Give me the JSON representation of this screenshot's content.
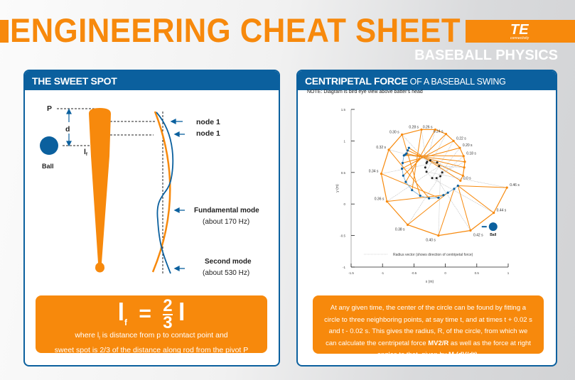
{
  "header": {
    "title": "ENGINEERING CHEAT SHEET",
    "subtitle": "BASEBALL PHYSICS",
    "logo_text": "TE",
    "logo_sub": "connectivity",
    "accent": "#f7890c",
    "brand_blue": "#0b609e"
  },
  "sweet_spot": {
    "heading": "THE SWEET SPOT",
    "labels": {
      "pivot": "P",
      "distance": "d",
      "contact": "l",
      "contact_sub": "f",
      "ball": "Ball"
    },
    "modes": [
      {
        "label": "node 1"
      },
      {
        "label": "node 1"
      },
      {
        "label": "Fundamental mode",
        "detail": "(about 170 Hz)"
      },
      {
        "label": "Second mode",
        "detail": "(about 530 Hz)"
      }
    ],
    "formula": {
      "lhs": "l",
      "lhs_sub": "f",
      "eq": "=",
      "num": "2",
      "den": "3",
      "rhs": "l"
    },
    "description_1a": "where l",
    "description_1sub": "f",
    "description_1b": " is distance from p to contact point and",
    "description_2": "sweet spot is 2/3 of the distance along rod from the pivot P"
  },
  "centripetal": {
    "heading_bold": "CENTRIPETAL FORCE",
    "heading_light": " OF A BASEBALL SWING",
    "note": "NOTE: Diagram is bird eye view above batter's head",
    "explanation": {
      "p1": "At any given time, the center of the circle can be found by fitting a circle to three neighboring points, at say time t, and at times t + 0.02 s and t - 0.02 s. This gives the radius, R, of the circle, from which we can calculate the centripetal force ",
      "b1": "MV2/R",
      "p2": " as well as the force at right angles to that, given by ",
      "b2": "M (dV/dt)",
      "p3": "."
    }
  },
  "chart_data": {
    "type": "scatter",
    "xlabel": "x (m)",
    "ylabel": "y (m)",
    "xlim": [
      -1.5,
      1
    ],
    "ylim": [
      -1,
      1.5
    ],
    "xticks": [
      "-1.5",
      "-1",
      "-0.5",
      "0",
      "0.5",
      "1"
    ],
    "yticks": [
      "1.5",
      "1",
      "0.5",
      "0",
      "-0.5",
      "-1"
    ],
    "legend": "Radius vector (shows direction of centripetal force)",
    "ball_label": "Ball",
    "ball": [
      0.76,
      -0.36
    ],
    "bat_end": [
      {
        "t": "0.0 s",
        "x": 0.24,
        "y": 0.37
      },
      {
        "t": "",
        "x": 0.28,
        "y": 0.45
      },
      {
        "t": "",
        "x": 0.3,
        "y": 0.58
      },
      {
        "t": "",
        "x": 0.31,
        "y": 0.67
      },
      {
        "t": "0.18 s",
        "x": 0.29,
        "y": 0.76
      },
      {
        "t": "0.20 s",
        "x": 0.23,
        "y": 0.89
      },
      {
        "t": "0.22 s",
        "x": 0.13,
        "y": 1.0
      },
      {
        "t": "0.24 s",
        "x": 0.01,
        "y": 1.11
      },
      {
        "t": "0.26 s",
        "x": -0.16,
        "y": 1.18
      },
      {
        "t": "0.28 s",
        "x": -0.38,
        "y": 1.18
      },
      {
        "t": "0.30 s",
        "x": -0.69,
        "y": 1.1
      },
      {
        "t": "0.32 s",
        "x": -0.9,
        "y": 0.86
      },
      {
        "t": "0.34 s",
        "x": -1.02,
        "y": 0.48
      },
      {
        "t": "0.36 s",
        "x": -0.93,
        "y": 0.04
      },
      {
        "t": "0.38 s",
        "x": -0.6,
        "y": -0.33
      },
      {
        "t": "0.40 s",
        "x": -0.11,
        "y": -0.5
      },
      {
        "t": "0.42 s",
        "x": 0.4,
        "y": -0.42
      },
      {
        "t": "0.44 s",
        "x": 0.77,
        "y": -0.14
      },
      {
        "t": "0.46 s",
        "x": 0.98,
        "y": 0.26
      }
    ],
    "bat_handle": [
      [
        -0.58,
        0.89
      ],
      [
        -0.6,
        0.85
      ],
      [
        -0.62,
        0.8
      ],
      [
        -0.64,
        0.78
      ],
      [
        -0.66,
        0.77
      ],
      [
        -0.68,
        0.65
      ],
      [
        -0.69,
        0.56
      ],
      [
        -0.67,
        0.45
      ],
      [
        -0.63,
        0.35
      ],
      [
        -0.53,
        0.22
      ],
      [
        -0.4,
        0.13
      ],
      [
        -0.26,
        0.09
      ],
      [
        -0.11,
        0.1
      ],
      [
        -0.03,
        0.14
      ],
      [
        0.04,
        0.18
      ],
      [
        0.14,
        0.24
      ],
      [
        0.2,
        0.29
      ]
    ],
    "center_points": [
      [
        -0.24,
        0.69
      ],
      [
        -0.13,
        0.66
      ],
      [
        -0.1,
        0.6
      ],
      [
        -0.05,
        0.5
      ],
      [
        -0.08,
        0.44
      ],
      [
        -0.14,
        0.41
      ],
      [
        -0.21,
        0.41
      ],
      [
        -0.3,
        0.51
      ],
      [
        -0.32,
        0.58
      ],
      [
        -0.3,
        0.65
      ],
      [
        -0.29,
        0.67
      ]
    ]
  }
}
